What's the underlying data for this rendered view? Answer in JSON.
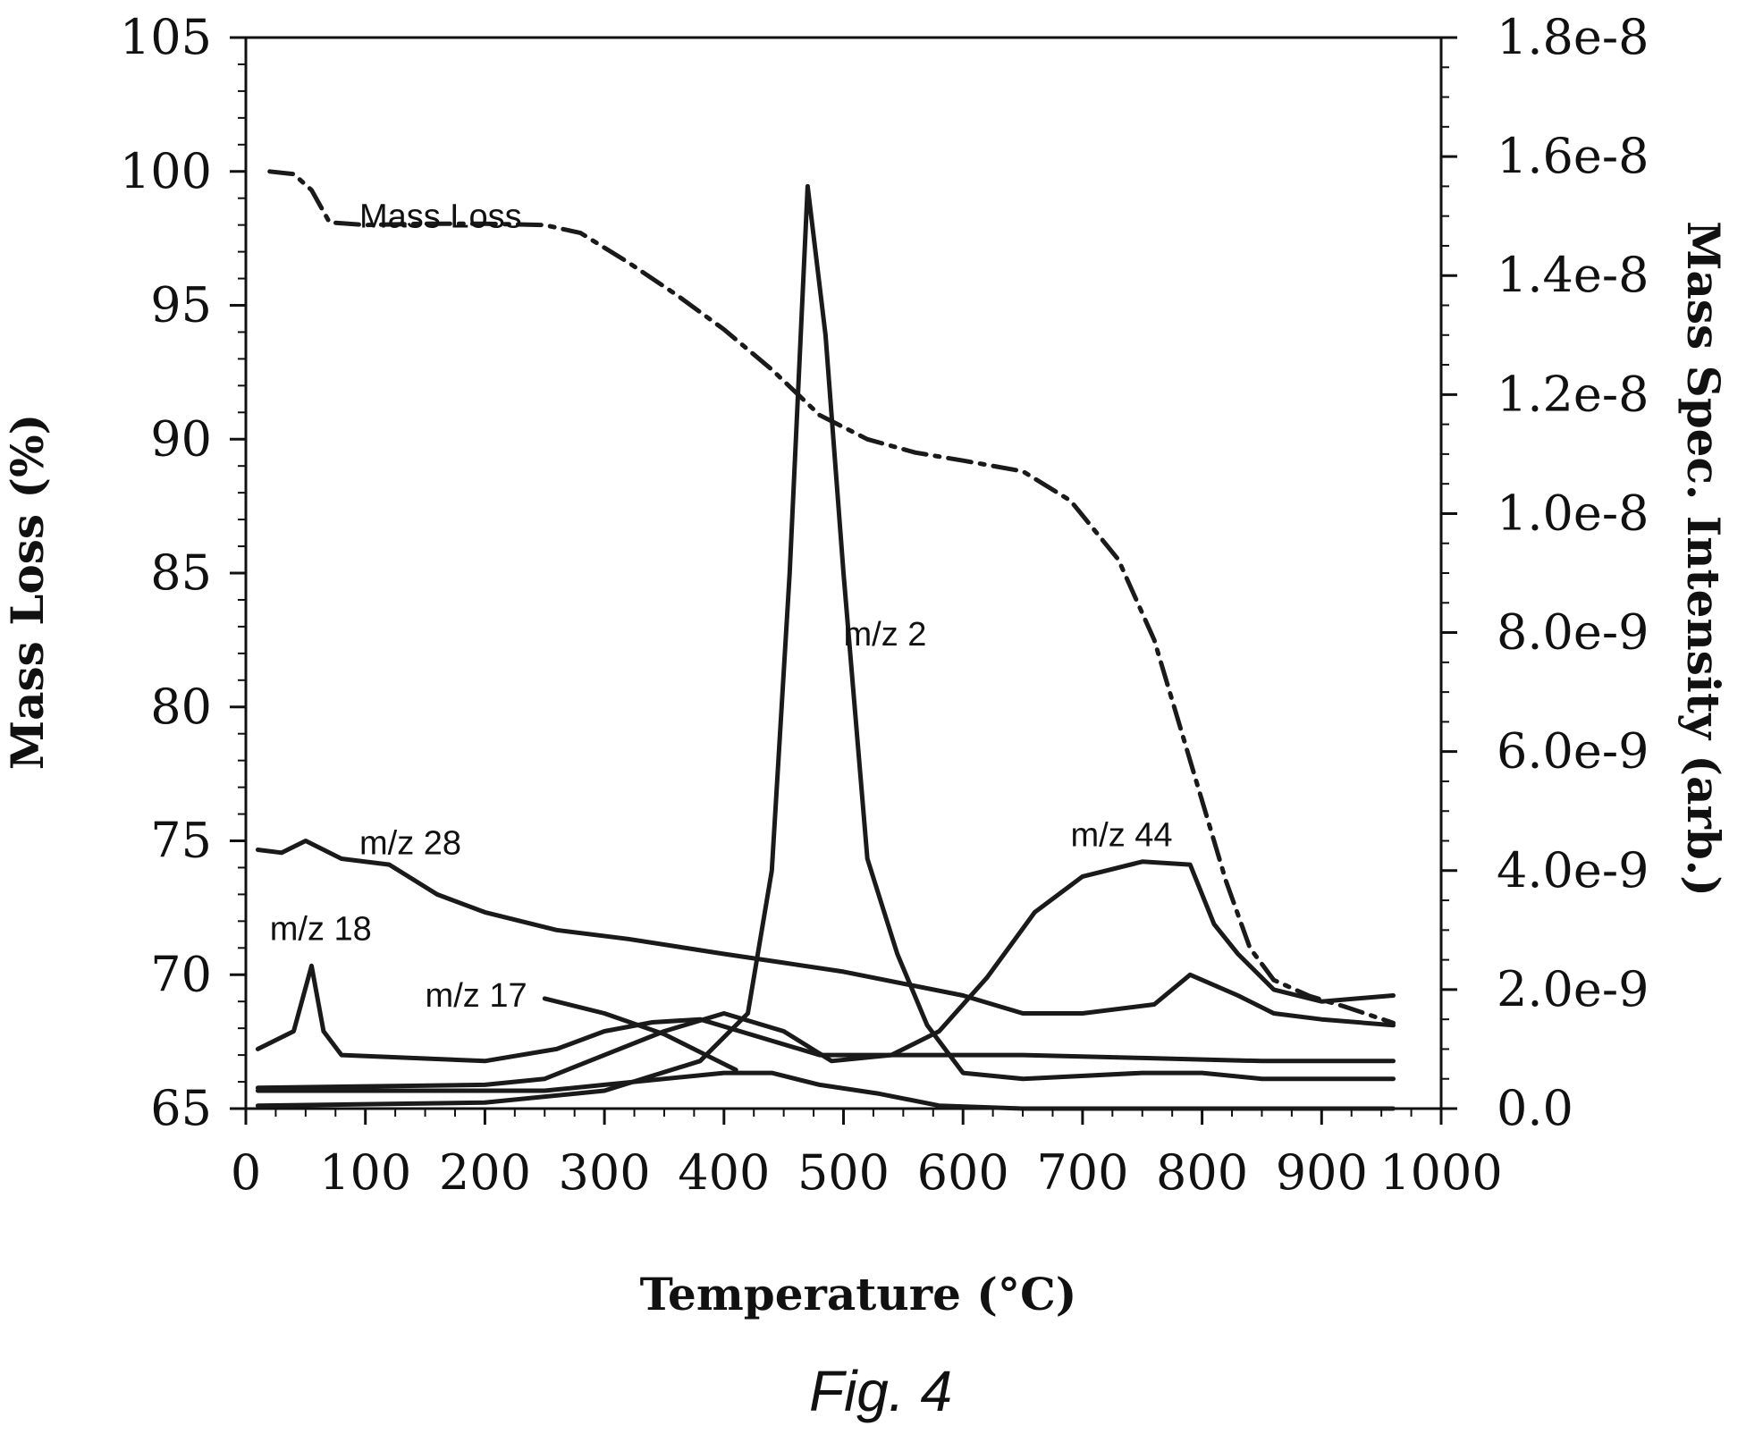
{
  "chart_data": {
    "type": "line",
    "title": "",
    "xlabel": "Temperature (°C)",
    "ylabel": "Mass Loss (%)",
    "y2label": "Mass Spec. Intensity (arb.)",
    "xlim": [
      0,
      1000
    ],
    "ylim": [
      65,
      105
    ],
    "y2lim": [
      0,
      1.8e-08
    ],
    "x_ticks": [
      "0",
      "100",
      "200",
      "300",
      "400",
      "500",
      "600",
      "700",
      "800",
      "900",
      "1000"
    ],
    "y_ticks": [
      "65",
      "70",
      "75",
      "80",
      "85",
      "90",
      "95",
      "100",
      "105"
    ],
    "y2_ticks": [
      "0.0",
      "2.0e-9",
      "4.0e-9",
      "6.0e-9",
      "8.0e-9",
      "1.0e-8",
      "1.2e-8",
      "1.4e-8",
      "1.6e-8",
      "1.8e-8"
    ],
    "grid": false,
    "series": [
      {
        "name": "Mass Loss",
        "axis": "left",
        "style": "dashdot",
        "points": [
          [
            20,
            100
          ],
          [
            40,
            99.9
          ],
          [
            55,
            99.3
          ],
          [
            70,
            98.1
          ],
          [
            100,
            98
          ],
          [
            150,
            98.05
          ],
          [
            200,
            98.05
          ],
          [
            250,
            98
          ],
          [
            280,
            97.7
          ],
          [
            320,
            96.6
          ],
          [
            360,
            95.4
          ],
          [
            400,
            94.1
          ],
          [
            440,
            92.6
          ],
          [
            480,
            90.9
          ],
          [
            520,
            90
          ],
          [
            560,
            89.5
          ],
          [
            600,
            89.2
          ],
          [
            650,
            88.8
          ],
          [
            690,
            87.7
          ],
          [
            730,
            85.5
          ],
          [
            760,
            82.5
          ],
          [
            790,
            78
          ],
          [
            820,
            73.5
          ],
          [
            840,
            71
          ],
          [
            860,
            69.8
          ],
          [
            890,
            69.2
          ],
          [
            920,
            68.8
          ],
          [
            960,
            68.2
          ]
        ]
      },
      {
        "name": "m/z 2",
        "axis": "right",
        "style": "solid",
        "points": [
          [
            10,
            5e-11
          ],
          [
            200,
            1e-10
          ],
          [
            300,
            3e-10
          ],
          [
            380,
            8e-10
          ],
          [
            420,
            1.6e-09
          ],
          [
            440,
            4e-09
          ],
          [
            455,
            9e-09
          ],
          [
            470,
            1.55e-08
          ],
          [
            485,
            1.3e-08
          ],
          [
            500,
            9e-09
          ],
          [
            520,
            4.2e-09
          ],
          [
            545,
            2.6e-09
          ],
          [
            570,
            1.4e-09
          ],
          [
            600,
            6e-10
          ],
          [
            650,
            5e-10
          ],
          [
            750,
            6e-10
          ],
          [
            800,
            6e-10
          ],
          [
            850,
            5e-10
          ],
          [
            960,
            5e-10
          ]
        ]
      },
      {
        "name": "m/z 44",
        "axis": "right",
        "style": "solid",
        "points": [
          [
            10,
            3.5e-10
          ],
          [
            200,
            4e-10
          ],
          [
            250,
            5e-10
          ],
          [
            300,
            9e-10
          ],
          [
            350,
            1.3e-09
          ],
          [
            400,
            1.6e-09
          ],
          [
            450,
            1.3e-09
          ],
          [
            490,
            8e-10
          ],
          [
            540,
            9e-10
          ],
          [
            580,
            1.3e-09
          ],
          [
            620,
            2.2e-09
          ],
          [
            660,
            3.3e-09
          ],
          [
            700,
            3.9e-09
          ],
          [
            750,
            4.15e-09
          ],
          [
            790,
            4.1e-09
          ],
          [
            810,
            3.1e-09
          ],
          [
            830,
            2.6e-09
          ],
          [
            860,
            2e-09
          ],
          [
            900,
            1.8e-09
          ],
          [
            960,
            1.9e-09
          ]
        ]
      },
      {
        "name": "m/z 28",
        "axis": "right",
        "style": "solid",
        "points": [
          [
            10,
            4.35e-09
          ],
          [
            30,
            4.3e-09
          ],
          [
            50,
            4.5e-09
          ],
          [
            80,
            4.2e-09
          ],
          [
            120,
            4.1e-09
          ],
          [
            160,
            3.6e-09
          ],
          [
            200,
            3.3e-09
          ],
          [
            260,
            3e-09
          ],
          [
            320,
            2.85e-09
          ],
          [
            400,
            2.6e-09
          ],
          [
            450,
            2.45e-09
          ],
          [
            500,
            2.3e-09
          ],
          [
            600,
            1.9e-09
          ],
          [
            650,
            1.6e-09
          ],
          [
            700,
            1.6e-09
          ],
          [
            760,
            1.75e-09
          ],
          [
            790,
            2.25e-09
          ],
          [
            830,
            1.9e-09
          ],
          [
            860,
            1.6e-09
          ],
          [
            900,
            1.5e-09
          ],
          [
            960,
            1.4e-09
          ]
        ]
      },
      {
        "name": "m/z 18",
        "axis": "right",
        "style": "solid",
        "points": [
          [
            10,
            1e-09
          ],
          [
            40,
            1.3e-09
          ],
          [
            55,
            2.4e-09
          ],
          [
            65,
            1.3e-09
          ],
          [
            80,
            9e-10
          ],
          [
            200,
            8e-10
          ],
          [
            260,
            1e-09
          ],
          [
            300,
            1.3e-09
          ],
          [
            340,
            1.45e-09
          ],
          [
            380,
            1.5e-09
          ],
          [
            430,
            1.2e-09
          ],
          [
            480,
            9e-10
          ],
          [
            550,
            9e-10
          ],
          [
            650,
            9e-10
          ],
          [
            750,
            8.5e-10
          ],
          [
            850,
            8e-10
          ],
          [
            960,
            8e-10
          ]
        ]
      },
      {
        "name": "m/z 17",
        "axis": "right",
        "style": "solid",
        "points": [
          [
            10,
            3e-10
          ],
          [
            150,
            3e-10
          ],
          [
            250,
            3e-10
          ],
          [
            300,
            4e-10
          ],
          [
            400,
            6e-10
          ],
          [
            440,
            6e-10
          ],
          [
            480,
            4e-10
          ],
          [
            530,
            2.5e-10
          ],
          [
            580,
            5e-11
          ],
          [
            650,
            0.0
          ],
          [
            800,
            0.0
          ],
          [
            960,
            0.0
          ]
        ]
      },
      {
        "name": "",
        "axis": "right",
        "style": "solid",
        "points": [
          [
            250,
            1.85e-09
          ],
          [
            300,
            1.6e-09
          ],
          [
            350,
            1.25e-09
          ],
          [
            380,
            9.5e-10
          ],
          [
            410,
            6.5e-10
          ]
        ]
      }
    ],
    "annotations": [
      {
        "text": "Mass Loss",
        "x": 95,
        "y": 97.9
      },
      {
        "text": "m/z 2",
        "x": 500,
        "y": 82.3
      },
      {
        "text": "m/z 44",
        "x": 690,
        "y": 74.8
      },
      {
        "text": "m/z 28",
        "x": 95,
        "y": 74.5
      },
      {
        "text": "m/z 18",
        "x": 20,
        "y": 71.3
      },
      {
        "text": "m/z 17",
        "x": 150,
        "y": 68.8
      }
    ]
  },
  "caption": "Fig. 4"
}
